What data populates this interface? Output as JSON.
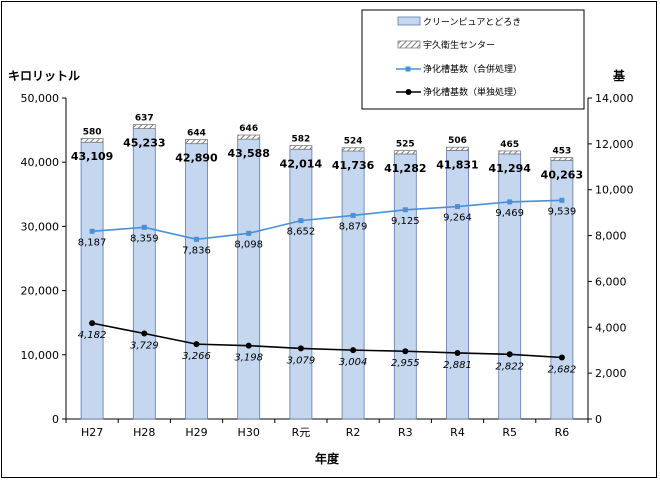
{
  "chart_data": {
    "type": "bar",
    "categories": [
      "H27",
      "H28",
      "H29",
      "H30",
      "R元",
      "R2",
      "R3",
      "R4",
      "R5",
      "R6"
    ],
    "xlabel": "年度",
    "ylabel_left": "キロリットル",
    "ylabel_right": "基",
    "ylim_left": [
      0,
      50000
    ],
    "ylim_right": [
      0,
      14000
    ],
    "yticks_left": [
      "0",
      "10,000",
      "20,000",
      "30,000",
      "40,000",
      "50,000"
    ],
    "yticks_right": [
      "0",
      "2,000",
      "4,000",
      "6,000",
      "8,000",
      "10,000",
      "12,000",
      "14,000"
    ],
    "grid": false,
    "legend_position": "top-right",
    "series": [
      {
        "name": "クリーンピュアとどろき",
        "kind": "stacked-bar",
        "axis": "left",
        "color": "#c5d6ef",
        "values": [
          43109,
          45233,
          42890,
          43588,
          42014,
          41736,
          41282,
          41831,
          41294,
          40263
        ],
        "labels": [
          "43,109",
          "45,233",
          "42,890",
          "43,588",
          "42,014",
          "41,736",
          "41,282",
          "41,831",
          "41,294",
          "40,263"
        ]
      },
      {
        "name": "宇久衛生センター",
        "kind": "stacked-bar",
        "axis": "left",
        "color": "#a6a6a6",
        "values": [
          580,
          637,
          644,
          646,
          582,
          524,
          525,
          506,
          465,
          453
        ],
        "labels": [
          "580",
          "637",
          "644",
          "646",
          "582",
          "524",
          "525",
          "506",
          "465",
          "453"
        ]
      },
      {
        "name": "浄化槽基数（合併処理）",
        "kind": "line",
        "axis": "right",
        "color": "#4a90d9",
        "values": [
          8187,
          8359,
          7836,
          8098,
          8652,
          8879,
          9125,
          9264,
          9469,
          9539
        ],
        "labels": [
          "8,187",
          "8,359",
          "7,836",
          "8,098",
          "8,652",
          "8,879",
          "9,125",
          "9,264",
          "9,469",
          "9,539"
        ]
      },
      {
        "name": "浄化槽基数（単独処理）",
        "kind": "line",
        "axis": "right",
        "color": "#000000",
        "values": [
          4182,
          3729,
          3266,
          3198,
          3079,
          3004,
          2955,
          2881,
          2822,
          2682
        ],
        "labels": [
          "4,182",
          "3,729",
          "3,266",
          "3,198",
          "3,079",
          "3,004",
          "2,955",
          "2,881",
          "2,822",
          "2,682"
        ]
      }
    ]
  }
}
